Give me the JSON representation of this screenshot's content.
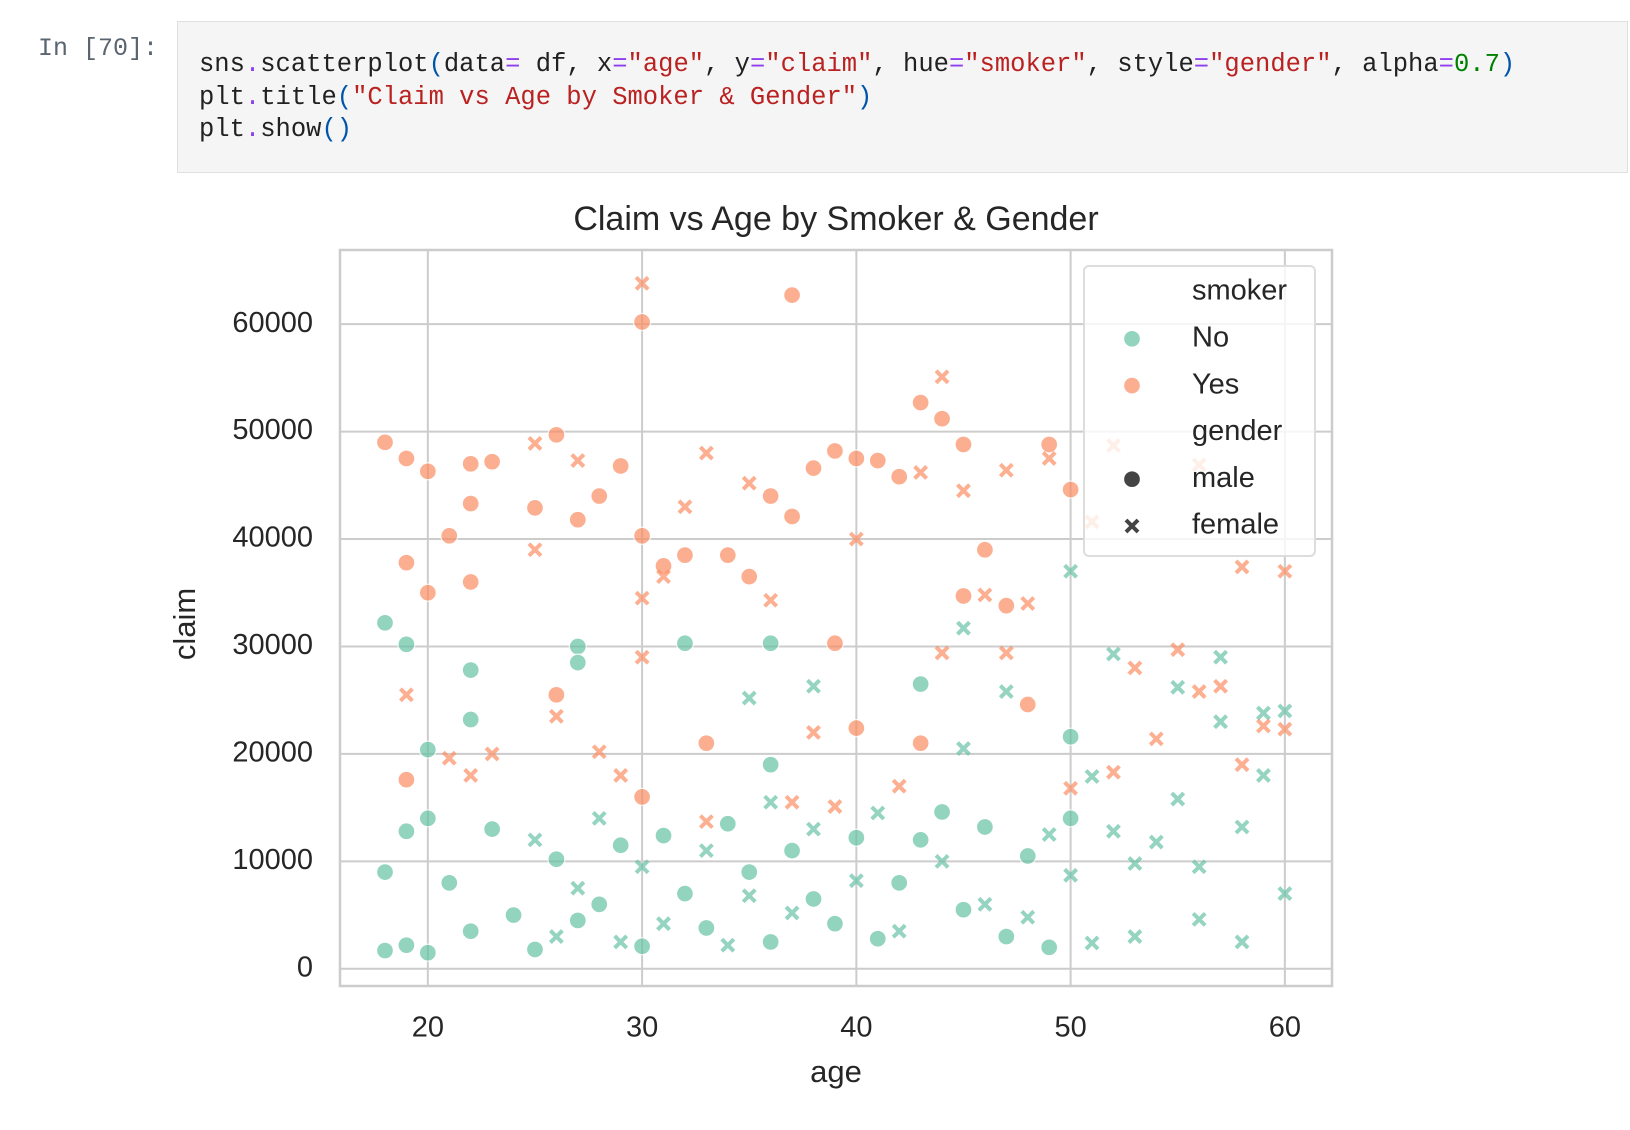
{
  "notebook": {
    "prompt": "In [70]:",
    "code": [
      [
        {
          "text": "sns",
          "color": "#212121"
        },
        {
          "text": ".",
          "color": "#8f3ff0"
        },
        {
          "text": "scatterplot",
          "color": "#212121"
        },
        {
          "text": "(",
          "color": "#0055aa"
        },
        {
          "text": "data",
          "color": "#212121"
        },
        {
          "text": "=",
          "color": "#8f3ff0"
        },
        {
          "text": " df, x",
          "color": "#212121"
        },
        {
          "text": "=",
          "color": "#8f3ff0"
        },
        {
          "text": "\"age\"",
          "color": "#ba2121"
        },
        {
          "text": ", y",
          "color": "#212121"
        },
        {
          "text": "=",
          "color": "#8f3ff0"
        },
        {
          "text": "\"claim\"",
          "color": "#ba2121"
        },
        {
          "text": ", hue",
          "color": "#212121"
        },
        {
          "text": "=",
          "color": "#8f3ff0"
        },
        {
          "text": "\"smoker\"",
          "color": "#ba2121"
        },
        {
          "text": ", style",
          "color": "#212121"
        },
        {
          "text": "=",
          "color": "#8f3ff0"
        },
        {
          "text": "\"gender\"",
          "color": "#ba2121"
        },
        {
          "text": ", alpha",
          "color": "#212121"
        },
        {
          "text": "=",
          "color": "#8f3ff0"
        },
        {
          "text": "0.7",
          "color": "#008000"
        },
        {
          "text": ")",
          "color": "#0055aa"
        }
      ],
      [
        {
          "text": "plt",
          "color": "#212121"
        },
        {
          "text": ".",
          "color": "#8f3ff0"
        },
        {
          "text": "title",
          "color": "#212121"
        },
        {
          "text": "(",
          "color": "#0055aa"
        },
        {
          "text": "\"Claim vs Age by Smoker & Gender\"",
          "color": "#ba2121"
        },
        {
          "text": ")",
          "color": "#0055aa"
        }
      ],
      [
        {
          "text": "plt",
          "color": "#212121"
        },
        {
          "text": ".",
          "color": "#8f3ff0"
        },
        {
          "text": "show",
          "color": "#212121"
        },
        {
          "text": "()",
          "color": "#0055aa"
        }
      ]
    ]
  },
  "chart_data": {
    "type": "scatter",
    "title": "Claim vs Age by Smoker & Gender",
    "xlabel": "age",
    "ylabel": "claim",
    "xlim": [
      15.9,
      62.2
    ],
    "ylim": [
      -1600,
      66900
    ],
    "xticks": [
      20,
      30,
      40,
      50,
      60
    ],
    "yticks": [
      0,
      10000,
      20000,
      30000,
      40000,
      50000,
      60000
    ],
    "grid": true,
    "alpha": 0.7,
    "legend": "upper right",
    "hue": {
      "title": "smoker",
      "levels": [
        {
          "name": "No",
          "color": "#66c2a5"
        },
        {
          "name": "Yes",
          "color": "#fc8d62"
        }
      ]
    },
    "style": {
      "title": "gender",
      "levels": [
        {
          "name": "male",
          "marker": "o"
        },
        {
          "name": "female",
          "marker": "x"
        }
      ]
    },
    "series": [
      {
        "hue": 0,
        "style": 0,
        "x": [
          18,
          18,
          19,
          19,
          20,
          20,
          21,
          22,
          22,
          23,
          24,
          25,
          26,
          27,
          27,
          28,
          29,
          30,
          31,
          32,
          33,
          34,
          35,
          36,
          36,
          37,
          38,
          39,
          40,
          41,
          42,
          43,
          44,
          45,
          46,
          47,
          48,
          49,
          50,
          18,
          19,
          20,
          22,
          27,
          32,
          36,
          43,
          50
        ],
        "values": [
          1700,
          9000,
          2200,
          12800,
          1500,
          14000,
          8000,
          3500,
          27800,
          13000,
          5000,
          1800,
          10200,
          4500,
          30000,
          6000,
          11500,
          2100,
          12400,
          7000,
          3800,
          13500,
          9000,
          2500,
          30300,
          11000,
          6500,
          4200,
          12200,
          2800,
          8000,
          26500,
          14600,
          5500,
          13200,
          3000,
          10500,
          2000,
          21600,
          32200,
          30200,
          20400,
          23200,
          28500,
          30300,
          19000,
          12000,
          14000
        ]
      },
      {
        "hue": 0,
        "style": 1,
        "x": [
          25,
          26,
          27,
          28,
          29,
          30,
          31,
          33,
          34,
          35,
          36,
          37,
          38,
          40,
          41,
          42,
          44,
          45,
          46,
          47,
          48,
          49,
          50,
          51,
          52,
          53,
          54,
          55,
          56,
          57,
          58,
          59,
          60,
          51,
          52,
          53,
          55,
          56,
          57,
          58,
          59,
          60,
          45,
          50,
          35,
          38
        ],
        "values": [
          12000,
          3000,
          7500,
          14000,
          2500,
          9500,
          4200,
          11000,
          2200,
          6800,
          15500,
          5200,
          13000,
          8200,
          14500,
          3500,
          10000,
          20500,
          6000,
          25800,
          4800,
          12500,
          37000,
          2400,
          29300,
          9800,
          11800,
          26200,
          4600,
          29000,
          13200,
          23800,
          24000,
          17900,
          12800,
          3000,
          15800,
          9500,
          23000,
          2500,
          18000,
          7000,
          31700,
          8700,
          25200,
          26300
        ]
      },
      {
        "hue": 1,
        "style": 0,
        "x": [
          18,
          19,
          19,
          20,
          20,
          21,
          22,
          22,
          23,
          25,
          26,
          26,
          27,
          28,
          29,
          30,
          30,
          31,
          32,
          33,
          34,
          35,
          36,
          37,
          37,
          38,
          39,
          39,
          40,
          40,
          41,
          42,
          43,
          43,
          44,
          45,
          46,
          47,
          48,
          49,
          50,
          19,
          22,
          30,
          45
        ],
        "values": [
          49000,
          47500,
          37800,
          46300,
          35000,
          40300,
          47000,
          36000,
          47200,
          42900,
          49700,
          25500,
          41800,
          44000,
          46800,
          60200,
          40300,
          37500,
          38500,
          21000,
          38500,
          36500,
          44000,
          62700,
          42100,
          46600,
          48200,
          30300,
          47500,
          22400,
          47300,
          45800,
          52700,
          21000,
          51200,
          48800,
          39000,
          33800,
          24600,
          48800,
          44600,
          17600,
          43300,
          16000,
          34700
        ]
      },
      {
        "hue": 1,
        "style": 1,
        "x": [
          19,
          21,
          22,
          23,
          25,
          26,
          27,
          28,
          29,
          30,
          30,
          31,
          32,
          33,
          35,
          36,
          37,
          38,
          39,
          40,
          42,
          43,
          44,
          45,
          46,
          47,
          48,
          49,
          50,
          51,
          52,
          53,
          54,
          55,
          56,
          57,
          58,
          59,
          60,
          25,
          30,
          33,
          44,
          47,
          52,
          56,
          58,
          60
        ],
        "values": [
          25500,
          19600,
          18000,
          20000,
          48900,
          23500,
          47300,
          20200,
          18000,
          63800,
          29000,
          36500,
          43000,
          48000,
          45200,
          34300,
          15500,
          22000,
          15100,
          40000,
          17000,
          46200,
          55100,
          44500,
          34800,
          29400,
          34000,
          47500,
          16800,
          41600,
          48700,
          28000,
          21400,
          29700,
          46900,
          26300,
          37400,
          22600,
          22300,
          39000,
          34500,
          13700,
          29400,
          46400,
          18300,
          25800,
          19000,
          37000
        ]
      }
    ]
  }
}
